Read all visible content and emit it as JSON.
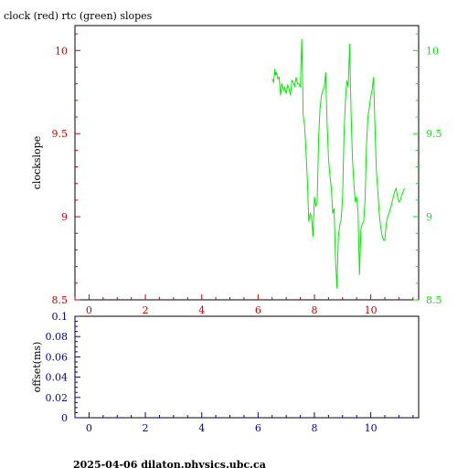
{
  "title": "clock (red) rtc (green) slopes",
  "footer": "2025-04-06  dilaton.physics.ubc.ca",
  "colors": {
    "red": "#cc0000",
    "green": "#00ee00",
    "blue": "#0000aa",
    "axis": "#000000"
  },
  "chart_data": [
    {
      "type": "line",
      "name": "slopes",
      "title": "clock (red) rtc (green) slopes",
      "ylabel": "clockslope",
      "xlim": [
        -0.5,
        11.7
      ],
      "ylim": [
        8.5,
        10.15
      ],
      "right_ylim": [
        8.5,
        10.15
      ],
      "x_ticks": [
        0,
        2,
        4,
        6,
        8,
        10
      ],
      "x_tick_labels": [
        "0",
        "2",
        "4",
        "6",
        "8",
        "10"
      ],
      "y_ticks": [
        8.5,
        9,
        9.5,
        10
      ],
      "y_tick_labels": [
        "8.5",
        "9",
        "9.5",
        "10"
      ],
      "right_y_tick_labels": [
        "8.5",
        "9",
        "9.5",
        "10"
      ],
      "series": [
        {
          "color": "#00ee00",
          "x": [
            6.5,
            6.55,
            6.6,
            6.62,
            6.65,
            6.7,
            6.75,
            6.8,
            6.85,
            6.9,
            6.95,
            7.0,
            7.05,
            7.1,
            7.15,
            7.2,
            7.25,
            7.3,
            7.35,
            7.4,
            7.45,
            7.5,
            7.55,
            7.58,
            7.6,
            7.62,
            7.65,
            7.7,
            7.75,
            7.8,
            7.85,
            7.9,
            7.95,
            8.0,
            8.05,
            8.1,
            8.15,
            8.2,
            8.25,
            8.3,
            8.35,
            8.4,
            8.45,
            8.5,
            8.55,
            8.6,
            8.65,
            8.7,
            8.75,
            8.8,
            8.85,
            8.9,
            8.95,
            9.0,
            9.05,
            9.1,
            9.15,
            9.2,
            9.25,
            9.3,
            9.35,
            9.4,
            9.45,
            9.5,
            9.55,
            9.6,
            9.65,
            9.7,
            9.75,
            9.8,
            9.85,
            9.9,
            9.95,
            10.0,
            10.05,
            10.1,
            10.15,
            10.2,
            10.25,
            10.3,
            10.35,
            10.4,
            10.45,
            10.5,
            10.55,
            10.6,
            10.65,
            10.7,
            10.75,
            10.8,
            10.85,
            10.9,
            10.95,
            11.0,
            11.05,
            11.1,
            11.15,
            11.2
          ],
          "y": [
            9.83,
            9.81,
            9.89,
            9.85,
            9.87,
            9.83,
            9.84,
            9.73,
            9.8,
            9.76,
            9.78,
            9.74,
            9.79,
            9.77,
            9.73,
            9.82,
            9.81,
            9.78,
            9.84,
            9.8,
            9.8,
            9.78,
            10.07,
            9.85,
            9.62,
            9.58,
            9.55,
            9.4,
            9.22,
            8.97,
            9.02,
            9.0,
            8.88,
            9.12,
            9.06,
            9.09,
            9.48,
            9.65,
            9.73,
            9.76,
            9.78,
            9.87,
            9.57,
            9.35,
            9.25,
            9.17,
            9.02,
            9.05,
            8.74,
            8.57,
            8.88,
            8.95,
            8.98,
            9.12,
            9.48,
            9.7,
            9.82,
            9.78,
            10.04,
            9.64,
            9.35,
            9.2,
            9.09,
            9.12,
            9.03,
            8.65,
            8.92,
            8.96,
            8.97,
            9.1,
            9.44,
            9.6,
            9.66,
            9.72,
            9.76,
            9.84,
            9.55,
            9.27,
            9.16,
            9.02,
            8.94,
            8.89,
            8.86,
            8.86,
            8.96,
            9.0,
            9.02,
            9.05,
            9.08,
            9.12,
            9.15,
            9.17,
            9.12,
            9.09,
            9.1,
            9.13,
            9.15,
            9.17
          ]
        }
      ]
    },
    {
      "type": "line",
      "name": "offset",
      "ylabel": "offset(ms)",
      "xlim": [
        -0.5,
        11.7
      ],
      "ylim": [
        0,
        0.1
      ],
      "x_ticks": [
        0,
        2,
        4,
        6,
        8,
        10
      ],
      "x_tick_labels": [
        "0",
        "2",
        "4",
        "6",
        "8",
        "10"
      ],
      "y_ticks": [
        0,
        0.02,
        0.04,
        0.06,
        0.08,
        0.1
      ],
      "y_tick_labels": [
        "0",
        "0.02",
        "0.04",
        "0.06",
        "0.08",
        "0.1"
      ],
      "series": []
    }
  ]
}
